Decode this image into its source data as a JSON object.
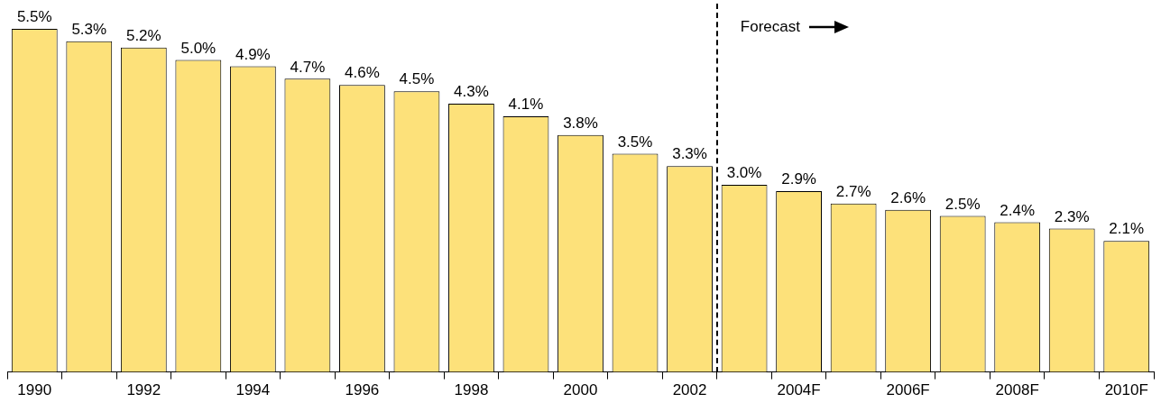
{
  "chart_data": {
    "type": "bar",
    "categories": [
      "1990",
      null,
      "1992",
      null,
      "1994",
      null,
      "1996",
      null,
      "1998",
      null,
      "2000",
      null,
      "2002",
      null,
      "2004F",
      null,
      "2006F",
      null,
      "2008F",
      null,
      "2010F"
    ],
    "values": [
      5.5,
      5.3,
      5.2,
      5.0,
      4.9,
      4.7,
      4.6,
      4.5,
      4.3,
      4.1,
      3.8,
      3.5,
      3.3,
      3.0,
      2.9,
      2.7,
      2.6,
      2.5,
      2.4,
      2.3,
      2.1
    ],
    "value_labels": [
      "5.5%",
      "5.3%",
      "5.2%",
      "5.0%",
      "4.9%",
      "4.7%",
      "4.6%",
      "4.5%",
      "4.3%",
      "4.1%",
      "3.8%",
      "3.5%",
      "3.3%",
      "3.0%",
      "2.9%",
      "2.7%",
      "2.6%",
      "2.5%",
      "2.4%",
      "2.3%",
      "2.1%"
    ],
    "color": "#fde17a",
    "annotations": [
      "Forecast"
    ],
    "grid": false,
    "legend": false
  }
}
